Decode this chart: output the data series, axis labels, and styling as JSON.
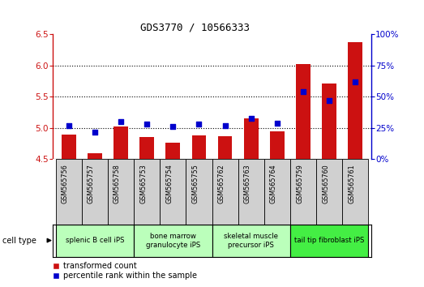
{
  "title": "GDS3770 / 10566333",
  "samples": [
    "GSM565756",
    "GSM565757",
    "GSM565758",
    "GSM565753",
    "GSM565754",
    "GSM565755",
    "GSM565762",
    "GSM565763",
    "GSM565764",
    "GSM565759",
    "GSM565760",
    "GSM565761"
  ],
  "transformed_count": [
    4.9,
    4.6,
    5.02,
    4.86,
    4.76,
    4.88,
    4.87,
    5.16,
    4.95,
    6.02,
    5.72,
    6.38
  ],
  "percentile_rank": [
    27,
    22,
    30,
    28,
    26,
    28,
    27,
    33,
    29,
    54,
    47,
    62
  ],
  "ylim_left": [
    4.5,
    6.5
  ],
  "ylim_right": [
    0,
    100
  ],
  "bar_color": "#cc1111",
  "dot_color": "#0000cc",
  "bar_width": 0.55,
  "axis_color_left": "#cc1111",
  "axis_color_right": "#0000cc",
  "grid_yticks": [
    5.0,
    5.5,
    6.0
  ],
  "left_yticks": [
    4.5,
    5.0,
    5.5,
    6.0,
    6.5
  ],
  "right_yticks": [
    0,
    25,
    50,
    75,
    100
  ],
  "right_yticklabels": [
    "0%",
    "25%",
    "50%",
    "75%",
    "100%"
  ],
  "ct_light_green": "#bbffbb",
  "ct_bright_green": "#44ee44",
  "sample_box_gray": "#d0d0d0",
  "cell_type_groups": [
    {
      "label": "splenic B cell iPS",
      "start": 0,
      "end": 3,
      "bright": false
    },
    {
      "label": "bone marrow\ngranulocyte iPS",
      "start": 3,
      "end": 6,
      "bright": false
    },
    {
      "label": "skeletal muscle\nprecursor iPS",
      "start": 6,
      "end": 9,
      "bright": false
    },
    {
      "label": "tail tip fibroblast iPS",
      "start": 9,
      "end": 12,
      "bright": true
    }
  ],
  "legend_labels": [
    "transformed count",
    "percentile rank within the sample"
  ],
  "cell_type_label": "cell type"
}
